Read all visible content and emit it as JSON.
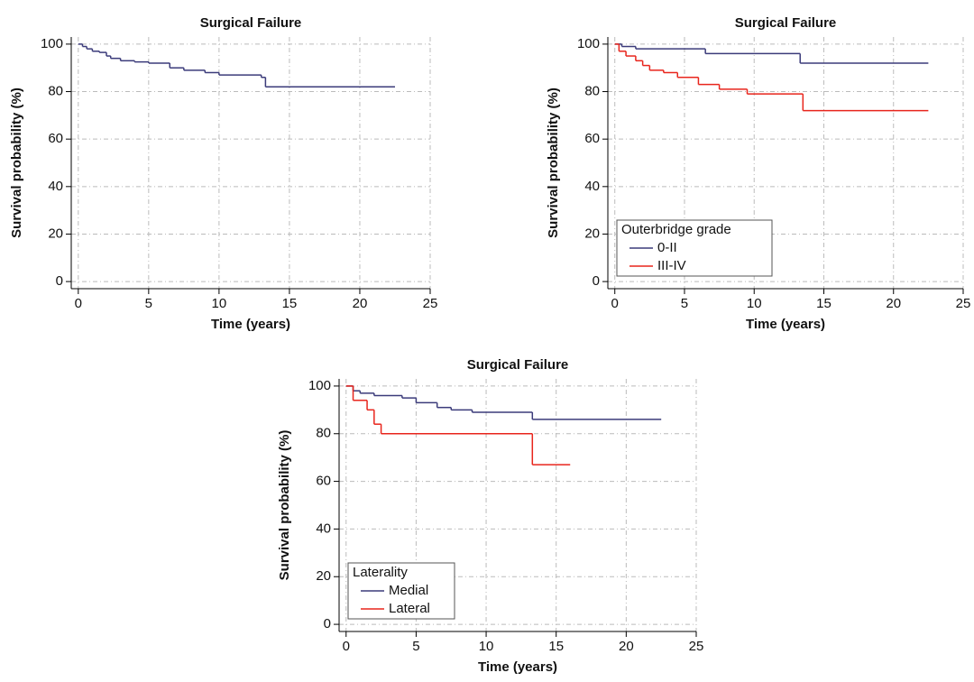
{
  "chart_data": [
    {
      "type": "step",
      "title": "Surgical Failure",
      "x_label": "Time (years)",
      "y_label": "Survival probability (%)",
      "xlim": [
        -0.5,
        25
      ],
      "ylim": [
        -3,
        103
      ],
      "xticks": [
        0,
        5,
        10,
        15,
        20,
        25
      ],
      "yticks": [
        0,
        20,
        40,
        60,
        80,
        100
      ],
      "grid": true,
      "series": [
        {
          "color": "#3b3b7a",
          "x": [
            0,
            0.3,
            0.6,
            1,
            1.5,
            2,
            2.3,
            3,
            4,
            5,
            6.5,
            7.5,
            9,
            10,
            13,
            13.3,
            22.5
          ],
          "values": [
            100,
            99,
            98,
            97,
            96.5,
            95,
            94,
            93,
            92.5,
            92,
            90,
            89,
            88,
            87,
            86,
            82,
            82
          ]
        }
      ]
    },
    {
      "type": "step",
      "title": "Surgical Failure",
      "x_label": "Time (years)",
      "y_label": "Survival probability (%)",
      "xlim": [
        -0.5,
        25
      ],
      "ylim": [
        -3,
        103
      ],
      "xticks": [
        0,
        5,
        10,
        15,
        20,
        25
      ],
      "yticks": [
        0,
        20,
        40,
        60,
        80,
        100
      ],
      "grid": true,
      "legend_title": "Outerbridge grade",
      "legend": "lower left",
      "series": [
        {
          "name": "0-II",
          "color": "#3b3b7a",
          "x": [
            0,
            0.5,
            1.5,
            6.5,
            13.3,
            22.5
          ],
          "values": [
            100,
            99,
            98,
            96,
            92,
            92
          ]
        },
        {
          "name": "III-IV",
          "color": "#e8251c",
          "x": [
            0,
            0.3,
            0.8,
            1.5,
            2,
            2.5,
            3.5,
            4.5,
            6,
            7.5,
            9.5,
            13.5,
            22.5
          ],
          "values": [
            100,
            97,
            95,
            93,
            91,
            89,
            88,
            86,
            83,
            81,
            79,
            72,
            72
          ]
        }
      ]
    },
    {
      "type": "step",
      "title": "Surgical Failure",
      "x_label": "Time (years)",
      "y_label": "Survival probability (%)",
      "xlim": [
        -0.5,
        25
      ],
      "ylim": [
        -3,
        103
      ],
      "xticks": [
        0,
        5,
        10,
        15,
        20,
        25
      ],
      "yticks": [
        0,
        20,
        40,
        60,
        80,
        100
      ],
      "grid": true,
      "legend_title": "Laterality",
      "legend": "lower left",
      "series": [
        {
          "name": "Medial",
          "color": "#3b3b7a",
          "x": [
            0,
            0.5,
            1,
            2,
            4,
            5,
            6.5,
            7.5,
            9,
            13.3,
            22.5
          ],
          "values": [
            100,
            98,
            97,
            96,
            95,
            93,
            91,
            90,
            89,
            86,
            86
          ]
        },
        {
          "name": "Lateral",
          "color": "#e8251c",
          "x": [
            0,
            0.5,
            1.5,
            2,
            2.5,
            13.3,
            16
          ],
          "values": [
            100,
            94,
            90,
            84,
            80,
            67,
            67
          ]
        }
      ]
    }
  ]
}
